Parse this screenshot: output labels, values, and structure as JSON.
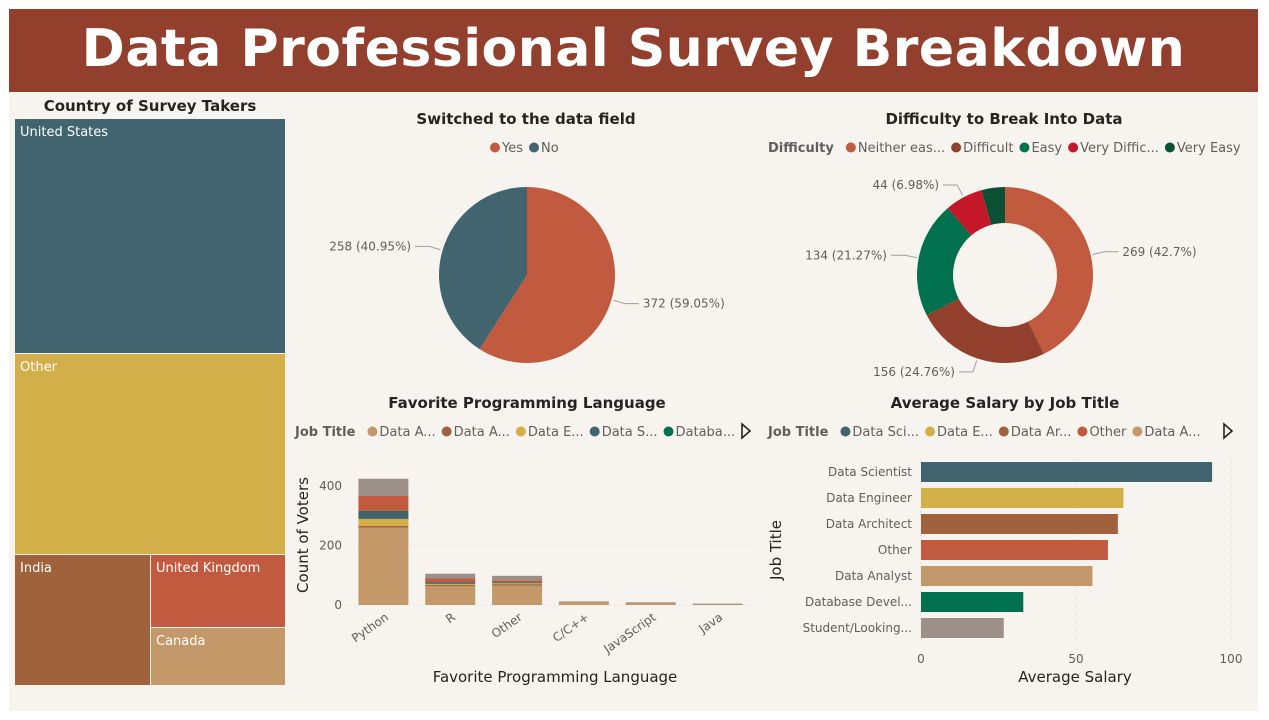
{
  "header": {
    "title": "Data Professional Survey Breakdown"
  },
  "chart_data": [
    {
      "type": "treemap",
      "title": "Country of Survey Takers",
      "items": [
        {
          "name": "United States",
          "color": "#41646e"
        },
        {
          "name": "Other",
          "color": "#d3af4a"
        },
        {
          "name": "India",
          "color": "#a0613d"
        },
        {
          "name": "United Kingdom",
          "color": "#c15a3f"
        },
        {
          "name": "Canada",
          "color": "#c4996a"
        }
      ]
    },
    {
      "type": "pie",
      "title": "Switched to the data field",
      "legend": [
        {
          "name": "Yes",
          "color": "#c15a3f"
        },
        {
          "name": "No",
          "color": "#41646e"
        }
      ],
      "slices": [
        {
          "name": "Yes",
          "value": 372,
          "label": "372 (59.05%)",
          "color": "#c15a3f"
        },
        {
          "name": "No",
          "value": 258,
          "label": "258 (40.95%)",
          "color": "#41646e"
        }
      ]
    },
    {
      "type": "donut",
      "title": "Difficulty to Break Into Data",
      "legend_title": "Difficulty",
      "legend": [
        {
          "name": "Neither eas...",
          "color": "#c15a3f"
        },
        {
          "name": "Difficult",
          "color": "#933f2e"
        },
        {
          "name": "Easy",
          "color": "#00704e"
        },
        {
          "name": "Very Diffic...",
          "color": "#c5172a"
        },
        {
          "name": "Very Easy",
          "color": "#0b4f35"
        }
      ],
      "slices": [
        {
          "name": "Neither easy nor difficult",
          "value": 269,
          "label": "269 (42.7%)",
          "color": "#c15a3f"
        },
        {
          "name": "Difficult",
          "value": 156,
          "label": "156 (24.76%)",
          "color": "#933f2e"
        },
        {
          "name": "Easy",
          "value": 134,
          "label": "134 (21.27%)",
          "color": "#00704e"
        },
        {
          "name": "Very Difficult",
          "value": 44,
          "label": "44 (6.98%)",
          "color": "#c5172a"
        },
        {
          "name": "Very Easy",
          "value": 27,
          "label": "",
          "color": "#0b4f35"
        }
      ]
    },
    {
      "type": "bar",
      "stacked": true,
      "title": "Favorite Programming Language",
      "legend_title": "Job Title",
      "legend": [
        {
          "name": "Data A...",
          "color": "#c4996a"
        },
        {
          "name": "Data A...",
          "color": "#a0613d"
        },
        {
          "name": "Data E...",
          "color": "#d3af4a"
        },
        {
          "name": "Data S...",
          "color": "#41646e"
        },
        {
          "name": "Databa...",
          "color": "#00704e"
        }
      ],
      "xlabel": "Favorite Programming Language",
      "ylabel": "Count of Voters",
      "ylim": [
        0,
        470
      ],
      "yticks": [
        0,
        200,
        400
      ],
      "categories": [
        "Python",
        "R",
        "Other",
        "C/C++",
        "JavaScript",
        "Java"
      ],
      "series": [
        {
          "color": "#c4996a",
          "values": [
            260,
            63,
            65,
            6,
            4,
            2
          ]
        },
        {
          "color": "#a0613d",
          "values": [
            6,
            5,
            5,
            1,
            1,
            0
          ]
        },
        {
          "color": "#d3af4a",
          "values": [
            23,
            3,
            3,
            1,
            1,
            0
          ]
        },
        {
          "color": "#41646e",
          "values": [
            25,
            5,
            3,
            1,
            1,
            1
          ]
        },
        {
          "color": "#00704e",
          "values": [
            2,
            1,
            1,
            0,
            0,
            0
          ]
        },
        {
          "color": "#c15a3f",
          "values": [
            50,
            12,
            6,
            1,
            1,
            1
          ]
        },
        {
          "color": "#9d9088",
          "values": [
            58,
            16,
            15,
            2,
            1,
            1
          ]
        }
      ]
    },
    {
      "type": "bar",
      "orientation": "horizontal",
      "title": "Average Salary by Job Title",
      "legend_title": "Job Title",
      "legend": [
        {
          "name": "Data Sci...",
          "color": "#41646e"
        },
        {
          "name": "Data E...",
          "color": "#d3af4a"
        },
        {
          "name": "Data Ar...",
          "color": "#a0613d"
        },
        {
          "name": "Other",
          "color": "#c15a3f"
        },
        {
          "name": "Data A...",
          "color": "#c4996a"
        }
      ],
      "xlabel": "Average Salary",
      "ylabel": "Job Title",
      "xlim": [
        0,
        100
      ],
      "xticks": [
        0,
        50,
        100
      ],
      "categories": [
        "Data Scientist",
        "Data Engineer",
        "Data Architect",
        "Other",
        "Data Analyst",
        "Database Devel...",
        "Student/Looking..."
      ],
      "values": [
        93.9,
        65.3,
        63.5,
        60.3,
        55.3,
        33.0,
        26.7
      ],
      "colors": [
        "#41646e",
        "#d3af4a",
        "#a0613d",
        "#c15a3f",
        "#c4996a",
        "#00704e",
        "#9d9088"
      ]
    }
  ]
}
